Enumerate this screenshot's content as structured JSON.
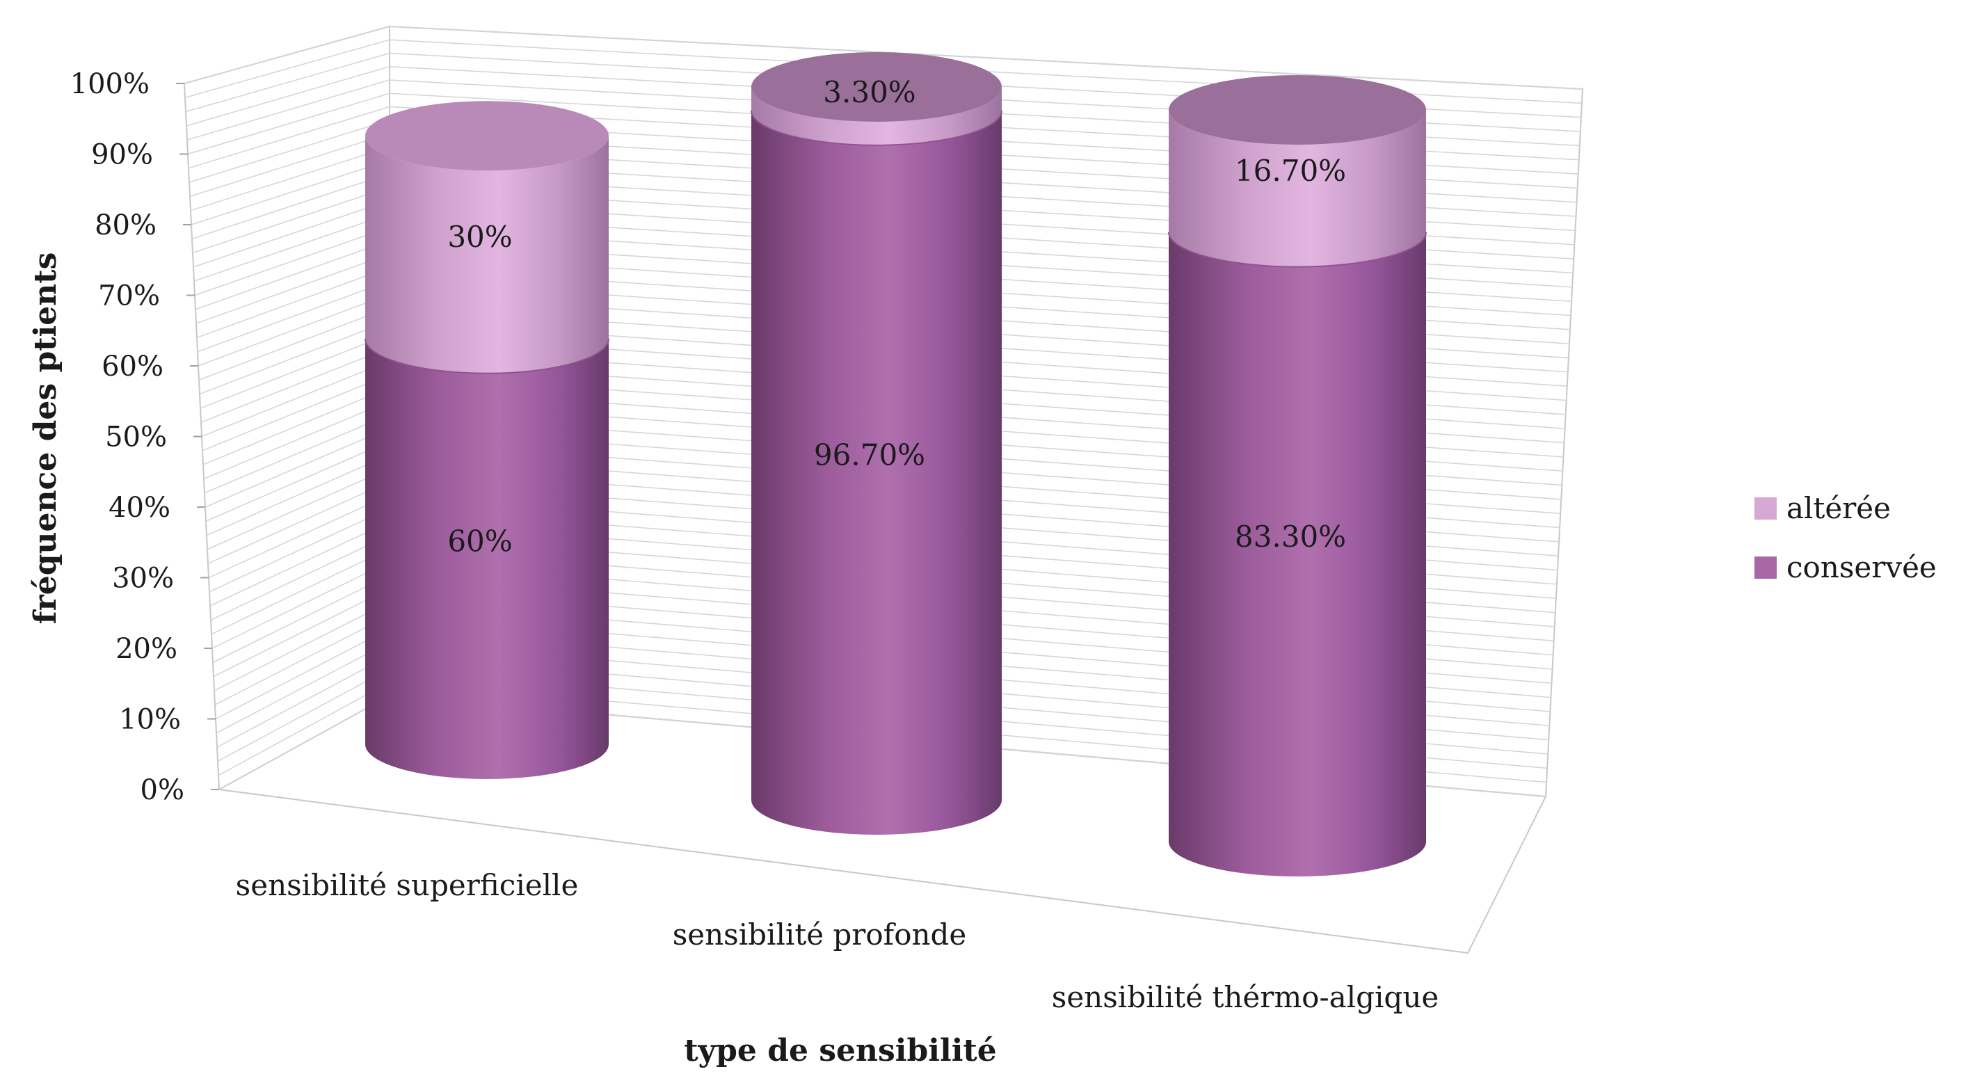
{
  "chart_data": {
    "type": "bar",
    "stacked": true,
    "style": "3d-cylinder",
    "title": "",
    "xlabel": "type de sensibilité",
    "ylabel": "fréquence des ptients",
    "ylim": [
      0,
      100
    ],
    "yticks": [
      "0%",
      "10%",
      "20%",
      "30%",
      "40%",
      "50%",
      "60%",
      "70%",
      "80%",
      "90%",
      "100%"
    ],
    "grid": true,
    "legend_position": "right",
    "categories": [
      "sensibilité superficielle",
      "sensibilité profonde",
      "sensibilité thérmo-algique"
    ],
    "series": [
      {
        "name": "conservée",
        "color": "#a868a6",
        "values": [
          60,
          96.7,
          83.3
        ],
        "labels": [
          "60%",
          "96.70%",
          "83.30%"
        ]
      },
      {
        "name": "altérée",
        "color": "#d6a8d4",
        "values": [
          30,
          3.3,
          16.7
        ],
        "labels": [
          "30%",
          "3.30%",
          "16.70%"
        ]
      }
    ]
  }
}
